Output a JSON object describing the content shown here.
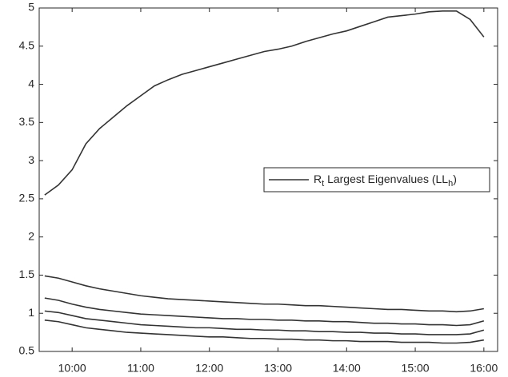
{
  "chart_data": {
    "type": "line",
    "x": [
      9.6,
      9.8,
      10.0,
      10.2,
      10.4,
      10.6,
      10.8,
      11.0,
      11.2,
      11.4,
      11.6,
      11.8,
      12.0,
      12.2,
      12.4,
      12.6,
      12.8,
      13.0,
      13.2,
      13.4,
      13.6,
      13.8,
      14.0,
      14.2,
      14.4,
      14.6,
      14.8,
      15.0,
      15.2,
      15.4,
      15.6,
      15.8,
      16.0
    ],
    "series": [
      {
        "name": [
          "R",
          "t",
          " Largest Eigenvalues (LL",
          "h",
          ")"
        ],
        "color": "#333333",
        "values": [
          2.55,
          2.68,
          2.88,
          3.22,
          3.42,
          3.57,
          3.72,
          3.85,
          3.98,
          4.06,
          4.13,
          4.18,
          4.23,
          4.28,
          4.33,
          4.38,
          4.43,
          4.46,
          4.5,
          4.56,
          4.61,
          4.66,
          4.7,
          4.76,
          4.82,
          4.88,
          4.9,
          4.92,
          4.95,
          4.96,
          4.96,
          4.85,
          4.62
        ]
      },
      {
        "color": "#333333",
        "values": [
          1.49,
          1.46,
          1.41,
          1.36,
          1.32,
          1.29,
          1.26,
          1.23,
          1.21,
          1.19,
          1.18,
          1.17,
          1.16,
          1.15,
          1.14,
          1.13,
          1.12,
          1.12,
          1.11,
          1.1,
          1.1,
          1.09,
          1.08,
          1.07,
          1.06,
          1.05,
          1.05,
          1.04,
          1.03,
          1.03,
          1.02,
          1.03,
          1.06
        ]
      },
      {
        "color": "#333333",
        "values": [
          1.2,
          1.17,
          1.12,
          1.08,
          1.05,
          1.03,
          1.01,
          0.99,
          0.98,
          0.97,
          0.96,
          0.95,
          0.94,
          0.93,
          0.93,
          0.92,
          0.92,
          0.91,
          0.91,
          0.9,
          0.9,
          0.89,
          0.89,
          0.88,
          0.87,
          0.87,
          0.86,
          0.86,
          0.85,
          0.85,
          0.84,
          0.85,
          0.9
        ]
      },
      {
        "color": "#333333",
        "values": [
          1.03,
          1.01,
          0.97,
          0.93,
          0.91,
          0.89,
          0.87,
          0.85,
          0.84,
          0.83,
          0.82,
          0.81,
          0.81,
          0.8,
          0.79,
          0.79,
          0.78,
          0.78,
          0.77,
          0.77,
          0.76,
          0.76,
          0.75,
          0.75,
          0.74,
          0.74,
          0.73,
          0.73,
          0.72,
          0.72,
          0.72,
          0.73,
          0.78
        ]
      },
      {
        "color": "#333333",
        "values": [
          0.91,
          0.89,
          0.85,
          0.81,
          0.79,
          0.77,
          0.75,
          0.74,
          0.73,
          0.72,
          0.71,
          0.7,
          0.69,
          0.69,
          0.68,
          0.67,
          0.67,
          0.66,
          0.66,
          0.65,
          0.65,
          0.64,
          0.64,
          0.63,
          0.63,
          0.63,
          0.62,
          0.62,
          0.62,
          0.61,
          0.61,
          0.62,
          0.65
        ]
      }
    ],
    "xlim": [
      9.52,
      16.2
    ],
    "xticks": [
      {
        "value": 10,
        "label": "10:00"
      },
      {
        "value": 11,
        "label": "11:00"
      },
      {
        "value": 12,
        "label": "12:00"
      },
      {
        "value": 13,
        "label": "13:00"
      },
      {
        "value": 14,
        "label": "14:00"
      },
      {
        "value": 15,
        "label": "15:00"
      },
      {
        "value": 16,
        "label": "16:00"
      }
    ],
    "ylim": [
      0.5,
      5
    ],
    "yticks": [
      0.5,
      1,
      1.5,
      2,
      2.5,
      3,
      3.5,
      4,
      4.5,
      5
    ],
    "grid": false,
    "legend": "right"
  }
}
